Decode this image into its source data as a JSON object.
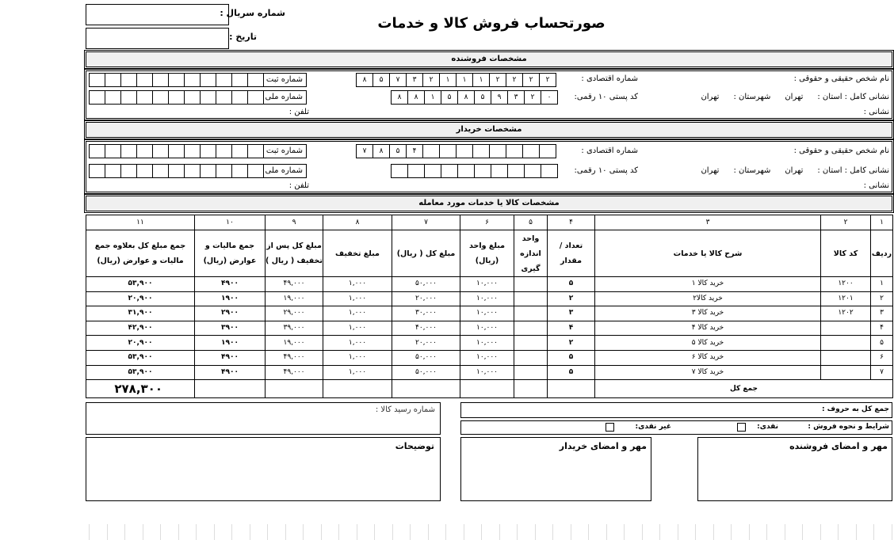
{
  "header": {
    "title": "صورتحساب فروش کالا و خدمات",
    "serial_label": "شماره سریال :",
    "serial_value": "",
    "date_label": "تاریخ :",
    "date_value": ""
  },
  "seller": {
    "section_title": "مشخصات فروشنده",
    "name_label": "نام شخص حقیقی و حقوقی :",
    "economic_label": "شماره اقتصادی :",
    "economic_digits": [
      "۸",
      "۵",
      "۷",
      "۳",
      "۲",
      "۱",
      "۱",
      "۱",
      "۲",
      "۲",
      "۲",
      "۲"
    ],
    "registration_label": "شماره ثبت",
    "registration_digits": [
      "",
      "",
      "",
      "",
      "",
      "",
      "",
      "",
      "",
      "",
      ""
    ],
    "address_full_label": "نشانی کامل : استان :",
    "province": "تهران",
    "city_label": "شهرستان :",
    "city": "تهران",
    "postal_label": "کد پستی ۱۰ رقمی:",
    "postal_digits": [
      "۸",
      "۸",
      "۱",
      "۵",
      "۸",
      "۵",
      "۹",
      "۳",
      "۲",
      "۰"
    ],
    "national_label": "شماره ملی",
    "national_digits": [
      "",
      "",
      "",
      "",
      "",
      "",
      "",
      "",
      "",
      "",
      ""
    ],
    "address_label": "نشانی :",
    "phone_label": "تلفن :"
  },
  "buyer": {
    "section_title": "مشخصات خریدار",
    "name_label": "نام شخص حقیقی و حقوقی :",
    "economic_label": "شماره اقتصادی :",
    "economic_digits": [
      "۷",
      "۸",
      "۵",
      "۴",
      "",
      "",
      "",
      "",
      "",
      "",
      "",
      ""
    ],
    "registration_label": "شماره ثبت",
    "registration_digits": [
      "",
      "",
      "",
      "",
      "",
      "",
      "",
      "",
      "",
      "",
      ""
    ],
    "address_full_label": "نشانی کامل : استان :",
    "province": "تهران",
    "city_label": "شهرستان :",
    "city": "تهران",
    "postal_label": "کد پستی ۱۰ رقمی:",
    "postal_digits": [
      "",
      "",
      "",
      "",
      "",
      "",
      "",
      "",
      "",
      ""
    ],
    "national_label": "شماره ملی",
    "national_digits": [
      "",
      "",
      "",
      "",
      "",
      "",
      "",
      "",
      "",
      "",
      ""
    ],
    "address_label": "نشانی :",
    "phone_label": "تلفن :"
  },
  "items": {
    "section_title": "مشخصات کالا یا خدمات مورد معامله",
    "column_numbers": [
      "۱",
      "۲",
      "۳",
      "۴",
      "۵",
      "۶",
      "۷",
      "۸",
      "۹",
      "۱۰",
      "۱۱"
    ],
    "columns": [
      "ردیف",
      "کد کالا",
      "شرح کالا یا خدمات",
      "تعداد / مقدار",
      "واحد اندازه گیری",
      "مبلغ واحد (ریال)",
      "مبلغ کل ( ریال)",
      "مبلغ تخفیف",
      "مبلغ کل پس از تخفیف ( ریال )",
      "جمع مالیات و عوارض (ریال)",
      "جمع مبلغ کل بعلاوه جمع مالیات و عوارض (ریال)"
    ],
    "rows": [
      [
        "۱",
        "۱۲۰۰",
        "خرید کالا ۱",
        "۵",
        "",
        "۱۰,۰۰۰",
        "۵۰,۰۰۰",
        "۱,۰۰۰",
        "۴۹,۰۰۰",
        "۴۹۰۰",
        "۵۳,۹۰۰"
      ],
      [
        "۲",
        "۱۲۰۱",
        "خرید کالا۲",
        "۲",
        "",
        "۱۰,۰۰۰",
        "۲۰,۰۰۰",
        "۱,۰۰۰",
        "۱۹,۰۰۰",
        "۱۹۰۰",
        "۲۰,۹۰۰"
      ],
      [
        "۳",
        "۱۲۰۲",
        "خرید کالا ۳",
        "۳",
        "",
        "۱۰,۰۰۰",
        "۳۰,۰۰۰",
        "۱,۰۰۰",
        "۲۹,۰۰۰",
        "۲۹۰۰",
        "۳۱,۹۰۰"
      ],
      [
        "۴",
        "",
        "خرید کالا ۴",
        "۴",
        "",
        "۱۰,۰۰۰",
        "۴۰,۰۰۰",
        "۱,۰۰۰",
        "۳۹,۰۰۰",
        "۳۹۰۰",
        "۴۲,۹۰۰"
      ],
      [
        "۵",
        "",
        "خرید کالا ۵",
        "۲",
        "",
        "۱۰,۰۰۰",
        "۲۰,۰۰۰",
        "۱,۰۰۰",
        "۱۹,۰۰۰",
        "۱۹۰۰",
        "۲۰,۹۰۰"
      ],
      [
        "۶",
        "",
        "خرید کالا ۶",
        "۵",
        "",
        "۱۰,۰۰۰",
        "۵۰,۰۰۰",
        "۱,۰۰۰",
        "۴۹,۰۰۰",
        "۴۹۰۰",
        "۵۳,۹۰۰"
      ],
      [
        "۷",
        "",
        "خرید کالا ۷",
        "۵",
        "",
        "۱۰,۰۰۰",
        "۵۰,۰۰۰",
        "۱,۰۰۰",
        "۴۹,۰۰۰",
        "۴۹۰۰",
        "۵۳,۹۰۰"
      ]
    ],
    "total_label": "جمع کل",
    "grand_total": "۲۷۸,۳۰۰"
  },
  "footer": {
    "receipt_label": "شماره رسید کالا :",
    "total_words_label": "جمع کل به حروف :",
    "terms_label": "شرایط و نحوه فروش :",
    "cash_label": "نقدی:",
    "noncash_label": "غیر نقدی:",
    "notes_label": "توضیحات",
    "buyer_sign_label": "مهر و امضای خریدار",
    "seller_sign_label": "مهر و امضای فروشنده"
  }
}
